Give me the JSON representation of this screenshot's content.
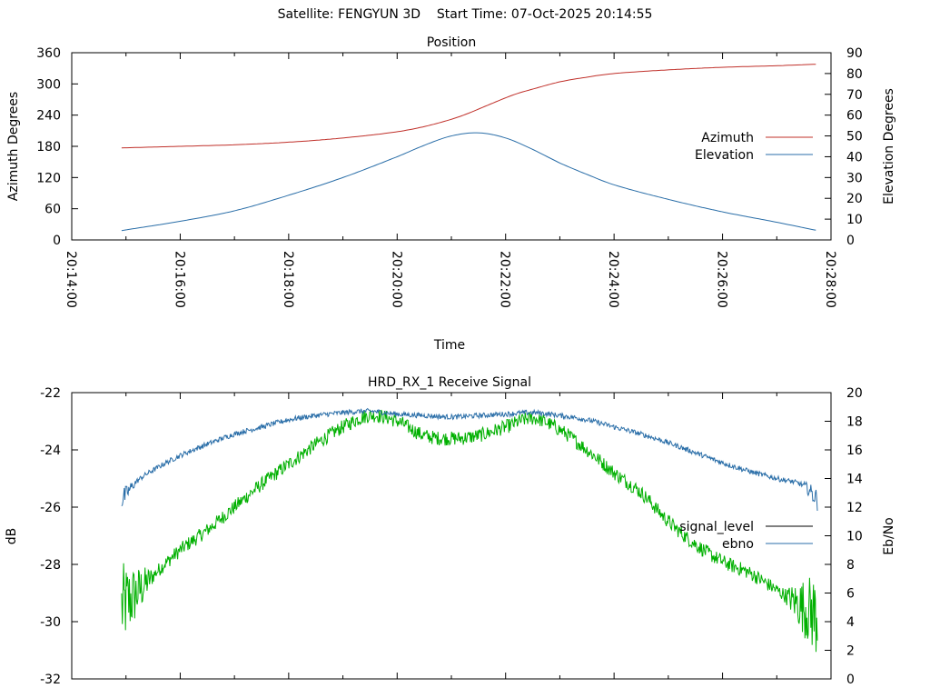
{
  "header": {
    "satellite_label": "Satellite: FENGYUN 3D",
    "start_time_label": "Start Time: 07-Oct-2025 20:14:55"
  },
  "chart_data": [
    {
      "type": "line",
      "title": "Position",
      "xlabel": "Time",
      "ylabel": "Azimuth Degrees",
      "y2label": "Elevation Degrees",
      "x_ticks": [
        "20:14:00",
        "20:16:00",
        "20:18:00",
        "20:20:00",
        "20:22:00",
        "20:24:00",
        "20:26:00",
        "20:28:00"
      ],
      "x_range_min": [
        0,
        14
      ],
      "ylim": [
        0,
        360
      ],
      "y_ticks": [
        0,
        60,
        120,
        180,
        240,
        300,
        360
      ],
      "y2lim": [
        0,
        90
      ],
      "y2_ticks": [
        0,
        10,
        20,
        30,
        40,
        50,
        60,
        70,
        80,
        90
      ],
      "legend_position": "right",
      "colors": {
        "azimuth": "#c0302a",
        "elevation": "#2a6ea8"
      },
      "series": [
        {
          "name": "Azimuth",
          "axis": "y",
          "x_min": [
            0.92,
            2,
            3,
            4,
            5,
            6,
            6.5,
            7,
            7.3,
            7.6,
            7.9,
            8.2,
            8.5,
            9,
            9.5,
            10,
            11,
            12,
            13,
            13.75
          ],
          "values": [
            177,
            180,
            183,
            188,
            196,
            208,
            218,
            232,
            243,
            256,
            269,
            281,
            290,
            304,
            313,
            320,
            327,
            332,
            335,
            338
          ]
        },
        {
          "name": "Elevation",
          "axis": "y2",
          "x_min": [
            0.92,
            2,
            3,
            4,
            5,
            6,
            6.5,
            7,
            7.5,
            8,
            8.5,
            9,
            9.5,
            10,
            11,
            12,
            13,
            13.75
          ],
          "values": [
            4.5,
            9,
            14,
            21.5,
            30,
            40,
            45.5,
            50,
            51.5,
            49,
            43.5,
            37,
            31.5,
            26.5,
            19.5,
            13.5,
            8.5,
            4.5
          ]
        }
      ]
    },
    {
      "type": "line",
      "title": "HRD_RX_1 Receive Signal",
      "ylabel": "dB",
      "y2label": "Eb/No",
      "ylim": [
        -32,
        -22
      ],
      "y_ticks": [
        -32,
        -30,
        -28,
        -26,
        -24,
        -22
      ],
      "y2lim": [
        0,
        20
      ],
      "y2_ticks": [
        0,
        2,
        4,
        6,
        8,
        10,
        12,
        14,
        16,
        18,
        20
      ],
      "x_range_min": [
        0,
        14
      ],
      "legend_position": "right",
      "colors": {
        "signal_level": "#000000",
        "ebno": "#2a6ea8",
        "signal_trace": "#00b000"
      },
      "series": [
        {
          "name": "signal_level",
          "axis": "y",
          "x_min": [
            0.92,
            1.2,
            1.6,
            2,
            2.5,
            3,
            3.5,
            4,
            4.5,
            5,
            5.5,
            6,
            6.5,
            7,
            7.5,
            8,
            8.5,
            9,
            9.5,
            10,
            10.5,
            11,
            11.5,
            12,
            12.5,
            13,
            13.5,
            13.75
          ],
          "values": [
            -29.5,
            -29,
            -28.2,
            -27.5,
            -26.8,
            -26,
            -25.2,
            -24.5,
            -23.8,
            -23.2,
            -22.8,
            -23,
            -23.5,
            -23.6,
            -23.5,
            -23.2,
            -22.9,
            -23.3,
            -24,
            -24.8,
            -25.5,
            -26.5,
            -27.3,
            -27.9,
            -28.3,
            -28.9,
            -29.5,
            -29.8
          ]
        },
        {
          "name": "ebno",
          "axis": "y2",
          "x_min": [
            0.92,
            1.2,
            1.6,
            2,
            2.5,
            3,
            3.5,
            4,
            4.5,
            5,
            5.5,
            6,
            6.5,
            7,
            7.5,
            8,
            8.5,
            9,
            9.5,
            10,
            10.5,
            11,
            11.5,
            12,
            12.5,
            13,
            13.5,
            13.75
          ],
          "values": [
            12.5,
            13.8,
            14.8,
            15.6,
            16.4,
            17.1,
            17.6,
            18.1,
            18.4,
            18.6,
            18.7,
            18.5,
            18.4,
            18.3,
            18.4,
            18.5,
            18.6,
            18.4,
            18.1,
            17.6,
            17.1,
            16.5,
            15.8,
            15.1,
            14.5,
            14,
            13.5,
            12.5
          ]
        }
      ]
    }
  ]
}
